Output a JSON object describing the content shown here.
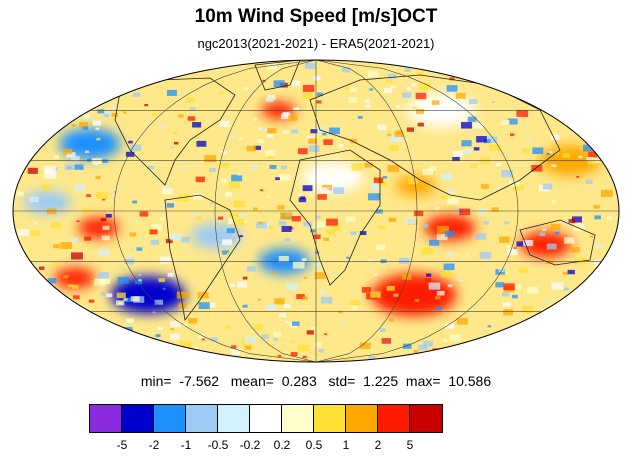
{
  "title": "10m Wind Speed [m/s]OCT",
  "subtitle": "ngc2013(2021-2021) - ERA5(2021-2021)",
  "stats": {
    "min_label": "min=",
    "min": "-7.562",
    "mean_label": "mean=",
    "mean": "0.283",
    "std_label": "std=",
    "std": "1.225",
    "max_label": "max=",
    "max": "10.586"
  },
  "colorbar": {
    "colors": [
      "#8a2be2",
      "#0000cd",
      "#1e90ff",
      "#9ecbf5",
      "#d1f1ff",
      "#ffffff",
      "#ffffcc",
      "#ffe033",
      "#ffa800",
      "#ff1a00",
      "#c80000"
    ],
    "labels": [
      "-5",
      "-2",
      "-1",
      "-0.5",
      "-0.2",
      "0.2",
      "0.5",
      "1",
      "2",
      "5"
    ]
  },
  "map": {
    "projection": "mollweide",
    "ocean_palette_note": "",
    "regions": [
      {
        "name": "north-pacific-blue",
        "lon": -150,
        "lat": 40,
        "r": 18,
        "color": "#1e90ff"
      },
      {
        "name": "north-atlantic-red",
        "lon": -30,
        "lat": 60,
        "r": 10,
        "color": "#ff1a00"
      },
      {
        "name": "south-atlantic-blue",
        "lon": -20,
        "lat": -30,
        "r": 15,
        "color": "#1e90ff"
      },
      {
        "name": "south-pacific-blue",
        "lon": -120,
        "lat": -50,
        "r": 22,
        "color": "#0000cd"
      },
      {
        "name": "south-indian-red",
        "lon": 70,
        "lat": -50,
        "r": 25,
        "color": "#ff1a00"
      },
      {
        "name": "indian-band-red",
        "lon": 80,
        "lat": -10,
        "r": 15,
        "color": "#ff1a00"
      },
      {
        "name": "australia-red",
        "lon": 140,
        "lat": -20,
        "r": 15,
        "color": "#ff1a00"
      },
      {
        "name": "east-pacific-red",
        "lon": -130,
        "lat": -10,
        "r": 12,
        "color": "#ff1a00"
      },
      {
        "name": "eq-pacific-blue",
        "lon": -160,
        "lat": 5,
        "r": 14,
        "color": "#9ecbf5"
      },
      {
        "name": "arabian-orange",
        "lon": 60,
        "lat": 15,
        "r": 12,
        "color": "#ffa800"
      },
      {
        "name": "north-africa-white",
        "lon": 10,
        "lat": 20,
        "r": 18,
        "color": "#ffffff"
      },
      {
        "name": "south-america-blue",
        "lon": -60,
        "lat": -15,
        "r": 15,
        "color": "#9ecbf5"
      },
      {
        "name": "siberia-white",
        "lon": 100,
        "lat": 60,
        "r": 20,
        "color": "#ffffff"
      },
      {
        "name": "west-pacific-orange",
        "lon": 160,
        "lat": 30,
        "r": 18,
        "color": "#ffa800"
      },
      {
        "name": "south-pacific-red",
        "lon": -160,
        "lat": -40,
        "r": 12,
        "color": "#ff1a00"
      }
    ]
  }
}
